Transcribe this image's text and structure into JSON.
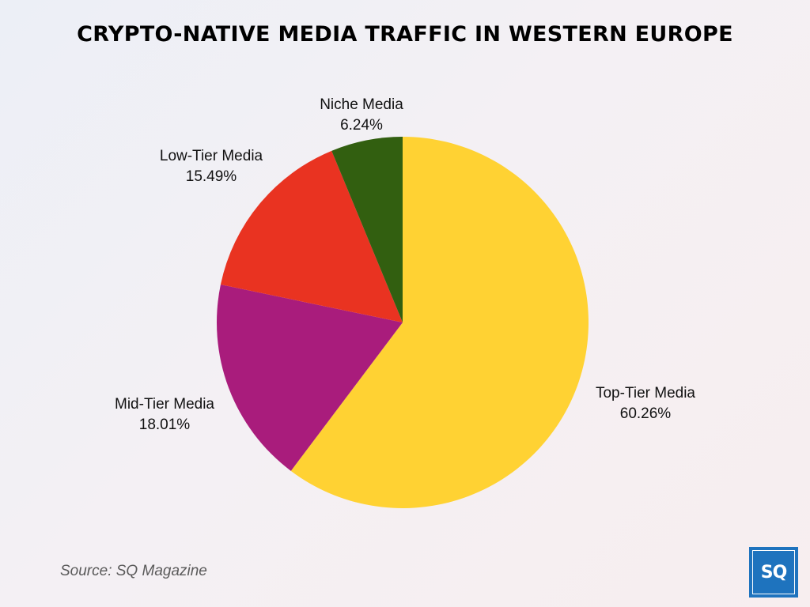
{
  "chart_data": {
    "type": "pie",
    "title": "CRYPTO-NATIVE MEDIA TRAFFIC IN WESTERN EUROPE",
    "slices": [
      {
        "name": "Top-Tier Media",
        "value": 60.26,
        "label": "60.26%",
        "color": "#ffd233"
      },
      {
        "name": "Mid-Tier Media",
        "value": 18.01,
        "label": "18.01%",
        "color": "#a91c7c"
      },
      {
        "name": "Low-Tier Media",
        "value": 15.49,
        "label": "15.49%",
        "color": "#e93321"
      },
      {
        "name": "Niche Media",
        "value": 6.24,
        "label": "6.24%",
        "color": "#325f10"
      }
    ],
    "start_direction": "top",
    "direction": "clockwise"
  },
  "footer": {
    "source": "Source: SQ Magazine",
    "logo_text": "SQ"
  }
}
